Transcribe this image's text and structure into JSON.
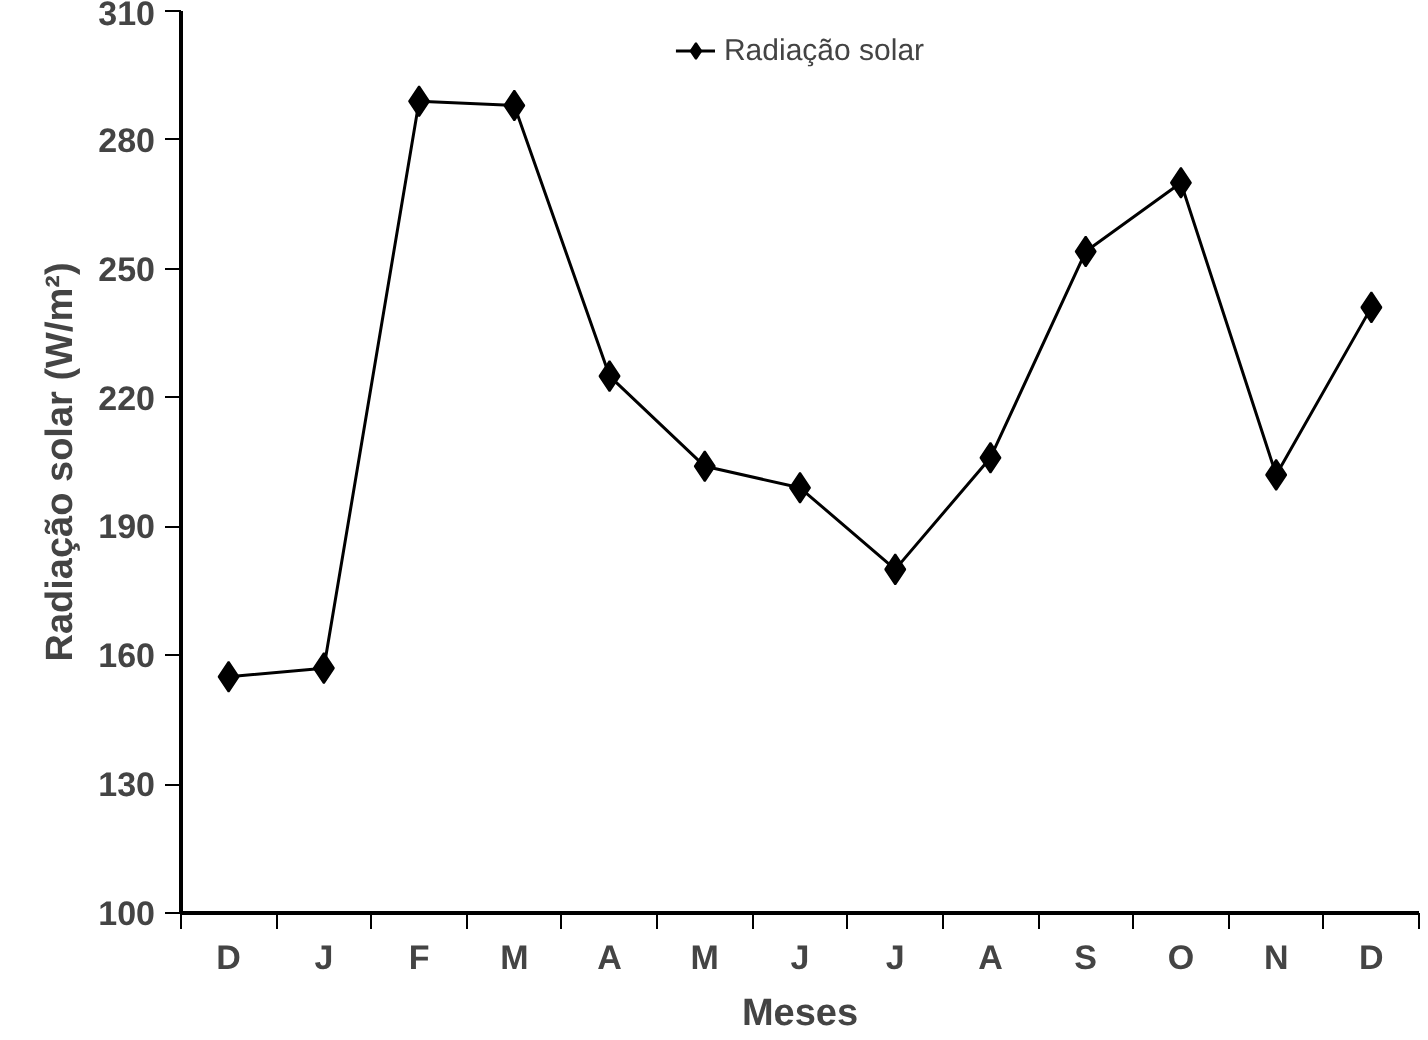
{
  "chart_data": {
    "type": "line",
    "xlabel": "Meses",
    "ylabel": "Radiação solar (W/m²)",
    "categories": [
      "D",
      "J",
      "F",
      "M",
      "A",
      "M",
      "J",
      "J",
      "A",
      "S",
      "O",
      "N",
      "D"
    ],
    "series": [
      {
        "name": "Radiação solar",
        "color": "#000000",
        "values": [
          155,
          157,
          289,
          288,
          225,
          204,
          199,
          180,
          206,
          254,
          270,
          202,
          241
        ]
      }
    ],
    "ylim": [
      100,
      310
    ],
    "yticks": [
      100,
      130,
      160,
      190,
      220,
      250,
      280,
      310
    ],
    "grid": false,
    "legend": "top",
    "marker": "diamond",
    "line_style": "solid"
  }
}
